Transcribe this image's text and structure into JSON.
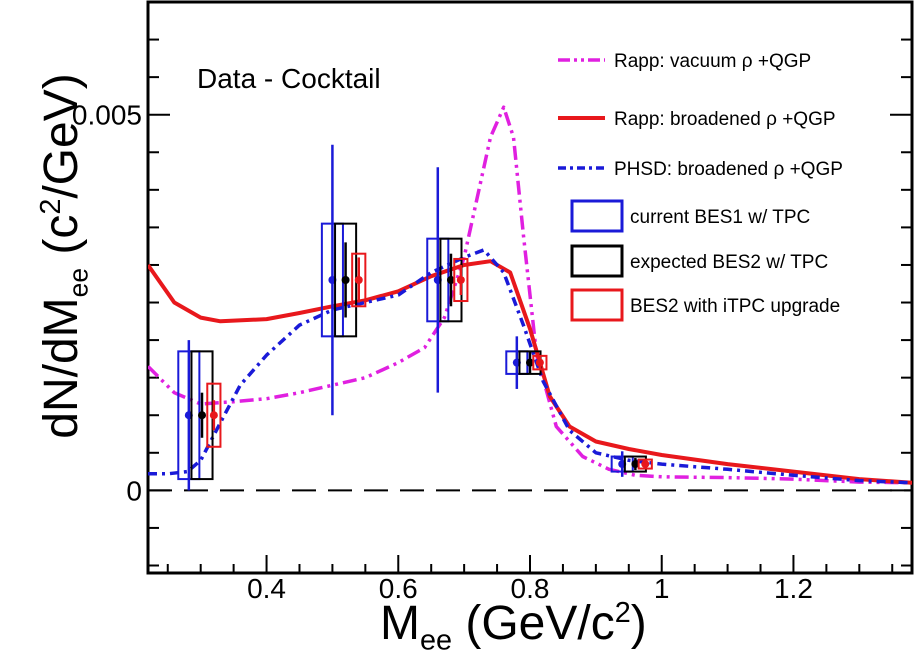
{
  "chart_data": {
    "type": "line",
    "annotation": "Data - Cocktail",
    "xlabel": {
      "main": "M",
      "sub": "ee",
      "rest": " (GeV/c",
      "sup": "2",
      "close": ")"
    },
    "ylabel": {
      "main": "dN/dM",
      "sub": "ee",
      "rest": "  (c",
      "sup": "2",
      "close": "/GeV)"
    },
    "xlim": [
      0.22,
      1.38
    ],
    "ylim": [
      -0.0011,
      0.0065
    ],
    "x_ticks": [
      0.4,
      0.6,
      0.8,
      1.0,
      1.2
    ],
    "x_tick_labels": [
      "0.4",
      "0.6",
      "0.8",
      "1",
      "1.2"
    ],
    "y_ticks": [
      0,
      0.005
    ],
    "y_tick_labels": [
      "0",
      "0.005"
    ],
    "zero_line": true,
    "legend_position": "top-right",
    "series": [
      {
        "name": "Rapp: vacuum ρ +QGP",
        "color": "#e020e0",
        "style": "dash-dot-dot",
        "x": [
          0.22,
          0.26,
          0.3,
          0.35,
          0.4,
          0.45,
          0.5,
          0.55,
          0.6,
          0.64,
          0.67,
          0.7,
          0.72,
          0.74,
          0.76,
          0.775,
          0.79,
          0.81,
          0.84,
          0.88,
          0.92,
          0.96,
          1.0,
          1.1,
          1.2,
          1.3,
          1.38
        ],
        "y": [
          0.00165,
          0.0013,
          0.00115,
          0.00118,
          0.00122,
          0.0013,
          0.0014,
          0.0015,
          0.0017,
          0.0019,
          0.0023,
          0.0031,
          0.0039,
          0.0047,
          0.0051,
          0.0047,
          0.0034,
          0.0018,
          0.00085,
          0.00045,
          0.00028,
          0.0002,
          0.00018,
          0.00017,
          0.00015,
          0.00011,
          0.0001
        ]
      },
      {
        "name": "Rapp: broadened ρ +QGP",
        "color": "#e8181c",
        "style": "solid",
        "x": [
          0.22,
          0.26,
          0.3,
          0.33,
          0.4,
          0.45,
          0.5,
          0.55,
          0.6,
          0.65,
          0.7,
          0.74,
          0.77,
          0.8,
          0.83,
          0.86,
          0.9,
          0.95,
          1.0,
          1.1,
          1.2,
          1.3,
          1.38
        ],
        "y": [
          0.003,
          0.0025,
          0.0023,
          0.00225,
          0.00228,
          0.00236,
          0.00245,
          0.00253,
          0.00265,
          0.00285,
          0.003,
          0.00305,
          0.0029,
          0.00215,
          0.00125,
          0.00085,
          0.00065,
          0.00055,
          0.00047,
          0.00035,
          0.00025,
          0.00015,
          0.0001
        ]
      },
      {
        "name": "PHSD: broadened ρ +QGP",
        "color": "#1a1ad8",
        "style": "dash-dot",
        "x": [
          0.22,
          0.25,
          0.28,
          0.3,
          0.33,
          0.36,
          0.4,
          0.45,
          0.5,
          0.55,
          0.6,
          0.65,
          0.7,
          0.73,
          0.76,
          0.79,
          0.82,
          0.86,
          0.9,
          0.95,
          1.0,
          1.1,
          1.2,
          1.3,
          1.38
        ],
        "y": [
          0.00022,
          0.00022,
          0.00025,
          0.0004,
          0.0009,
          0.0014,
          0.0018,
          0.0022,
          0.0024,
          0.0025,
          0.0026,
          0.0029,
          0.0031,
          0.0032,
          0.0029,
          0.0022,
          0.00145,
          0.0008,
          0.0005,
          0.0004,
          0.00035,
          0.00028,
          0.0002,
          0.00013,
          0.0001
        ]
      }
    ],
    "error_points": [
      {
        "name": "current BES1 w/ TPC",
        "color": "#1a1ad8",
        "points": [
          {
            "x": 0.282,
            "y": 0.001,
            "stat": [
              0.0,
              0.002
            ],
            "sys": 0.00085,
            "boxw": 0.032
          },
          {
            "x": 0.5,
            "y": 0.0028,
            "stat": [
              0.001,
              0.0046
            ],
            "sys": 0.00075,
            "boxw": 0.032
          },
          {
            "x": 0.66,
            "y": 0.0028,
            "stat": [
              0.0013,
              0.0043
            ],
            "sys": 0.00055,
            "boxw": 0.032
          },
          {
            "x": 0.78,
            "y": 0.0017,
            "stat": [
              0.00135,
              0.00205
            ],
            "sys": 0.00015,
            "boxw": 0.032
          },
          {
            "x": 0.94,
            "y": 0.00035,
            "stat": [
              0.00018,
              0.00052
            ],
            "sys": 0.0001,
            "boxw": 0.032
          }
        ]
      },
      {
        "name": "expected BES2 w/ TPC",
        "color": "#000000",
        "points": [
          {
            "x": 0.302,
            "y": 0.001,
            "stat": [
              0.0007,
              0.0013
            ],
            "sys": 0.00085,
            "boxw": 0.032
          },
          {
            "x": 0.52,
            "y": 0.0028,
            "stat": [
              0.0023,
              0.0033
            ],
            "sys": 0.00075,
            "boxw": 0.032
          },
          {
            "x": 0.68,
            "y": 0.0028,
            "stat": [
              0.00245,
              0.00315
            ],
            "sys": 0.00055,
            "boxw": 0.032
          },
          {
            "x": 0.8,
            "y": 0.0017,
            "stat": [
              0.00155,
              0.00185
            ],
            "sys": 0.00015,
            "boxw": 0.032
          },
          {
            "x": 0.96,
            "y": 0.00035,
            "stat": [
              0.00027,
              0.00043
            ],
            "sys": 0.0001,
            "boxw": 0.032
          }
        ]
      },
      {
        "name": "BES2 with iTPC upgrade",
        "color": "#e8181c",
        "points": [
          {
            "x": 0.32,
            "y": 0.001,
            "stat": [
              0.0008,
              0.0012
            ],
            "sys": 0.00042,
            "boxw": 0.02
          },
          {
            "x": 0.54,
            "y": 0.0028,
            "stat": [
              0.0025,
              0.0031
            ],
            "sys": 0.00035,
            "boxw": 0.02
          },
          {
            "x": 0.695,
            "y": 0.0028,
            "stat": [
              0.0026,
              0.003
            ],
            "sys": 0.00028,
            "boxw": 0.02
          },
          {
            "x": 0.815,
            "y": 0.0017,
            "stat": [
              0.0016,
              0.0018
            ],
            "sys": 9e-05,
            "boxw": 0.02
          },
          {
            "x": 0.975,
            "y": 0.00035,
            "stat": [
              0.0003,
              0.0004
            ],
            "sys": 6e-05,
            "boxw": 0.02
          }
        ]
      }
    ]
  }
}
